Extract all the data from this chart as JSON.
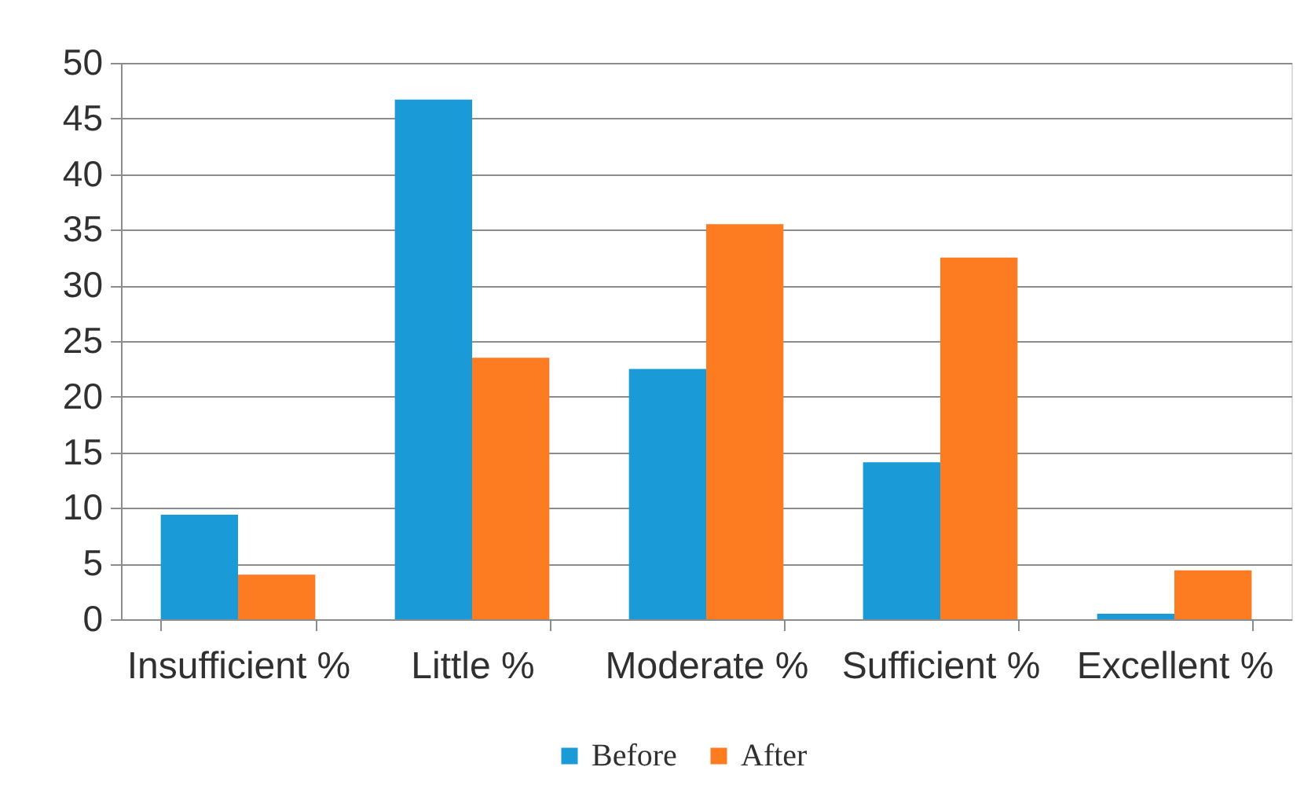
{
  "chart_data": {
    "type": "bar",
    "categories": [
      "Insufficient %",
      "Little %",
      "Moderate %",
      "Sufficient %",
      "Excellent %"
    ],
    "series": [
      {
        "name": "Before",
        "color": "#1a9ad6",
        "values": [
          9.4,
          46.7,
          22.5,
          14.1,
          0.5
        ]
      },
      {
        "name": "After",
        "color": "#fd7b21",
        "values": [
          4.0,
          23.5,
          35.5,
          32.5,
          4.4
        ]
      }
    ],
    "ylim": [
      0,
      50
    ],
    "yticks": [
      0,
      5,
      10,
      15,
      20,
      25,
      30,
      35,
      40,
      45,
      50
    ],
    "grid": "y",
    "legend": "bottom"
  }
}
